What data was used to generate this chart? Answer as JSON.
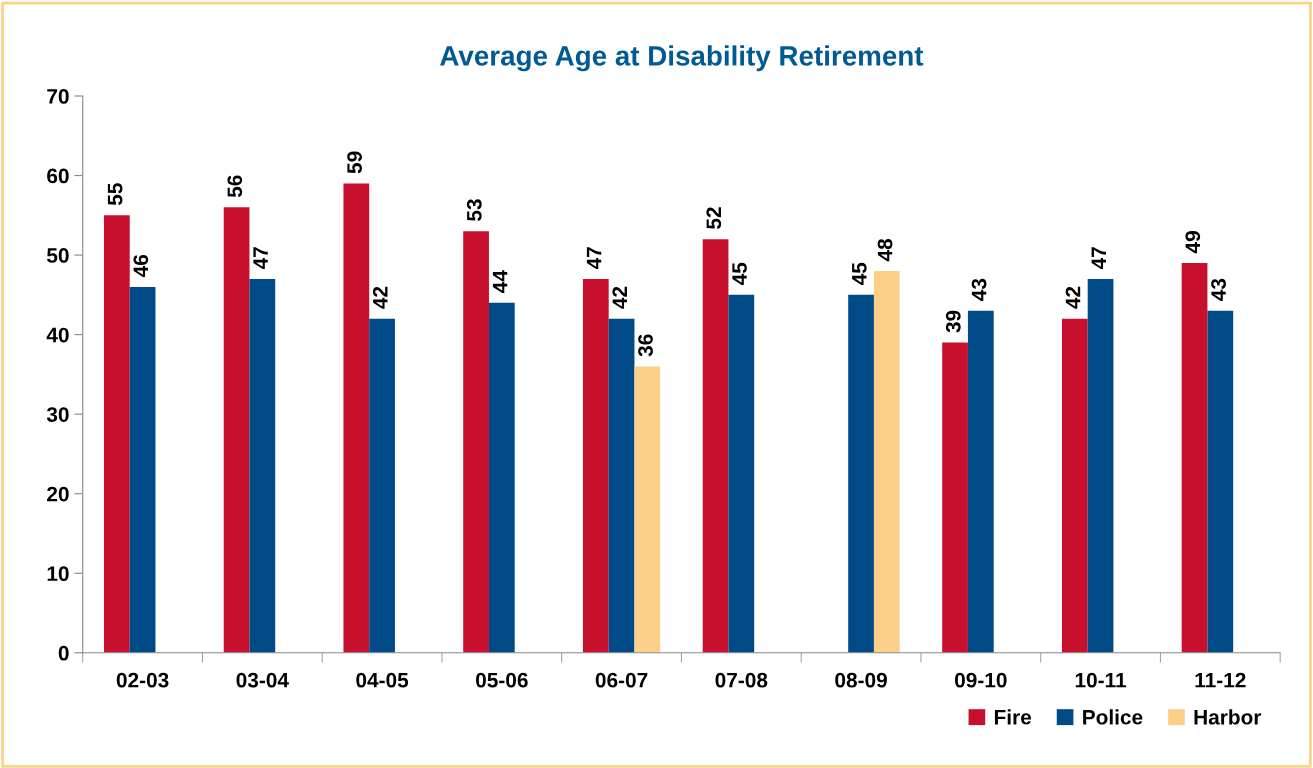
{
  "chart_data": {
    "type": "bar",
    "title": "Average Age at Disability Retirement",
    "categories": [
      "02-03",
      "03-04",
      "04-05",
      "05-06",
      "06-07",
      "07-08",
      "08-09",
      "09-10",
      "10-11",
      "11-12"
    ],
    "series": [
      {
        "name": "Fire",
        "color": "#c8102e",
        "values": [
          55,
          56,
          59,
          53,
          47,
          52,
          null,
          39,
          42,
          49
        ]
      },
      {
        "name": "Police",
        "color": "#004b87",
        "values": [
          46,
          47,
          42,
          44,
          42,
          45,
          45,
          43,
          47,
          43
        ]
      },
      {
        "name": "Harbor",
        "color": "#fdd089",
        "values": [
          null,
          null,
          null,
          null,
          36,
          null,
          48,
          null,
          null,
          null
        ]
      }
    ],
    "ylim": [
      0,
      70
    ],
    "yticks": [
      0,
      10,
      20,
      30,
      40,
      50,
      60,
      70
    ],
    "grid": false,
    "legend": "bottom right",
    "data_labels": true
  }
}
